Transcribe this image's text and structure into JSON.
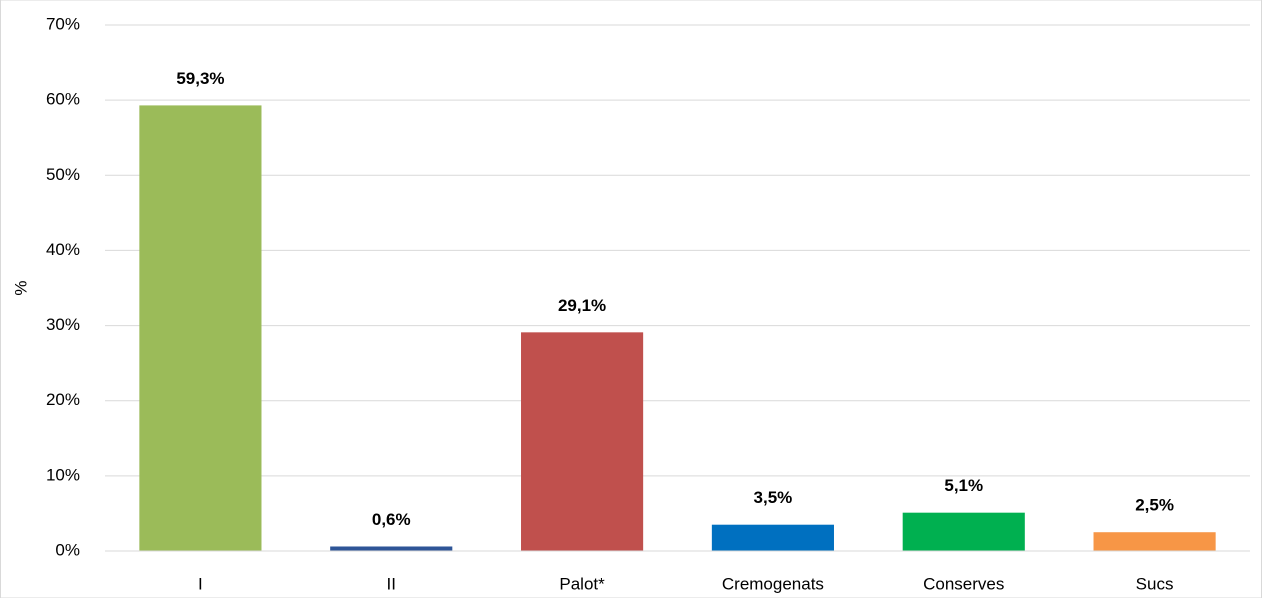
{
  "chart_data": {
    "type": "bar",
    "y_label": "%",
    "categories": [
      "I",
      "II",
      "Palot*",
      "Cremogenats",
      "Conserves",
      "Sucs"
    ],
    "values": [
      59.3,
      0.6,
      29.1,
      3.5,
      5.1,
      2.5
    ],
    "value_labels": [
      "59,3%",
      "0,6%",
      "29,1%",
      "3,5%",
      "5,1%",
      "2,5%"
    ],
    "colors": [
      "#9bbb59",
      "#2e5597",
      "#c0504d",
      "#0070c0",
      "#00b050",
      "#f79646"
    ],
    "ylim": [
      0,
      70
    ],
    "yticks": [
      {
        "value": 0,
        "label": "0%"
      },
      {
        "value": 10,
        "label": "10%"
      },
      {
        "value": 20,
        "label": "20%"
      },
      {
        "value": 30,
        "label": "30%"
      },
      {
        "value": 40,
        "label": "40%"
      },
      {
        "value": 50,
        "label": "50%"
      },
      {
        "value": 60,
        "label": "60%"
      },
      {
        "value": 70,
        "label": "70%"
      }
    ],
    "grid": true
  }
}
